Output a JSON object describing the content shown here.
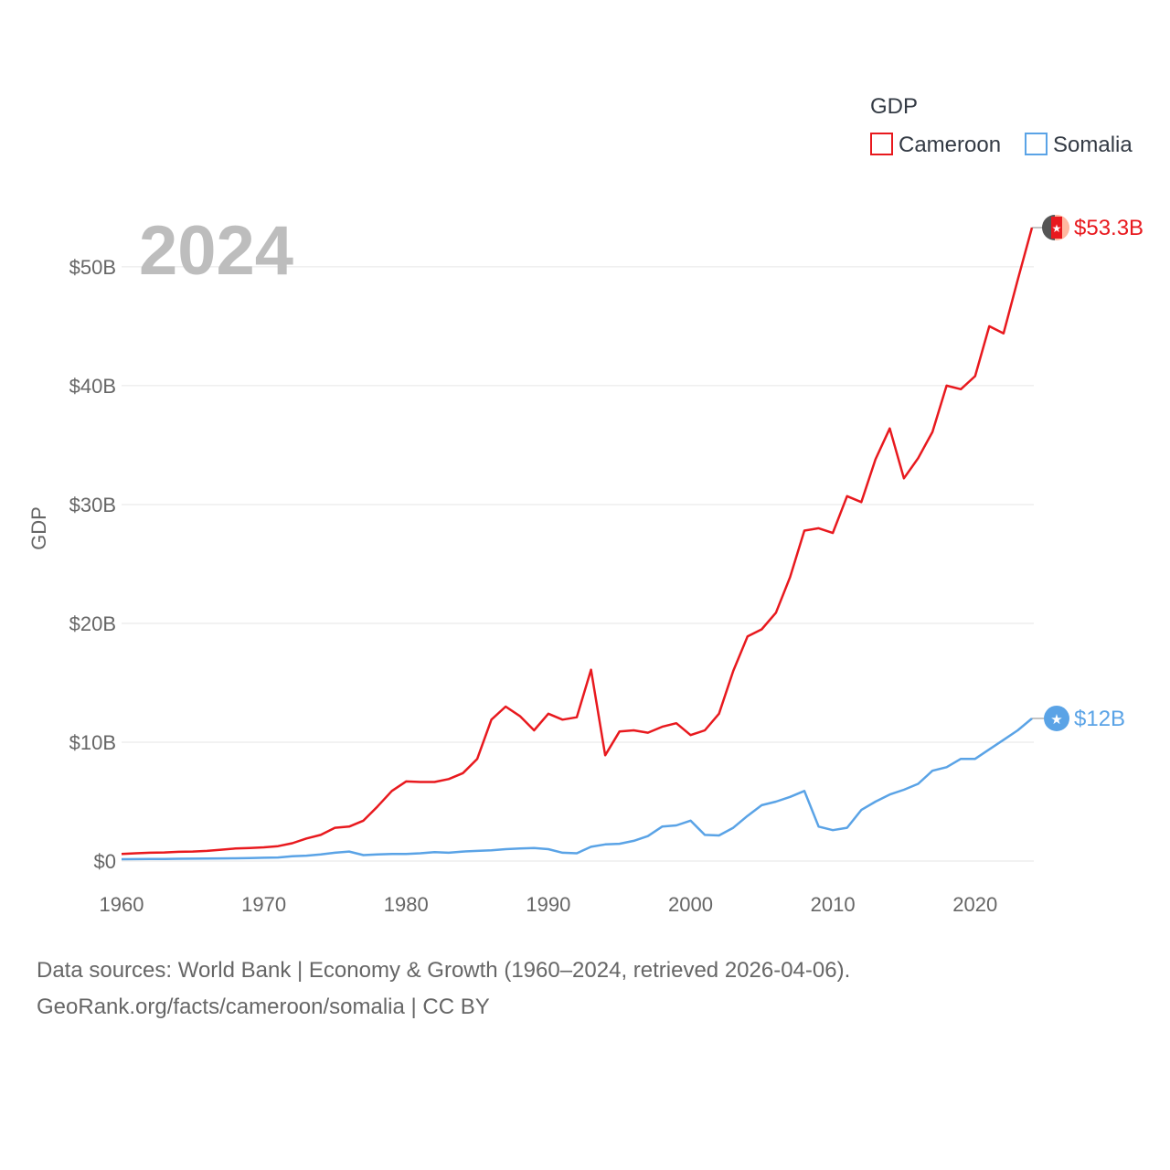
{
  "chart_data": {
    "type": "line",
    "year_label": "2024",
    "legend_title": "GDP",
    "ylabel": "GDP",
    "xlim": [
      1960,
      2024
    ],
    "ylim": [
      0,
      53.3
    ],
    "x_ticks": [
      1960,
      1970,
      1980,
      1990,
      2000,
      2010,
      2020
    ],
    "x_tick_labels": [
      "1960",
      "1970",
      "1980",
      "1990",
      "2000",
      "2010",
      "2020"
    ],
    "y_ticks": [
      0,
      10,
      20,
      30,
      40,
      50
    ],
    "y_tick_labels": [
      "$0",
      "$10B",
      "$20B",
      "$30B",
      "$40B",
      "$50B"
    ],
    "x": [
      1960,
      1961,
      1962,
      1963,
      1964,
      1965,
      1966,
      1967,
      1968,
      1969,
      1970,
      1971,
      1972,
      1973,
      1974,
      1975,
      1976,
      1977,
      1978,
      1979,
      1980,
      1981,
      1982,
      1983,
      1984,
      1985,
      1986,
      1987,
      1988,
      1989,
      1990,
      1991,
      1992,
      1993,
      1994,
      1995,
      1996,
      1997,
      1998,
      1999,
      2000,
      2001,
      2002,
      2003,
      2004,
      2005,
      2006,
      2007,
      2008,
      2009,
      2010,
      2011,
      2012,
      2013,
      2014,
      2015,
      2016,
      2017,
      2018,
      2019,
      2020,
      2021,
      2022,
      2023,
      2024
    ],
    "series": [
      {
        "name": "Cameroon",
        "color": "#e8191e",
        "end_label": "$53.3B",
        "values": [
          0.6,
          0.65,
          0.7,
          0.72,
          0.78,
          0.8,
          0.85,
          0.95,
          1.05,
          1.1,
          1.15,
          1.25,
          1.5,
          1.9,
          2.2,
          2.8,
          2.9,
          3.4,
          4.6,
          5.9,
          6.7,
          6.65,
          6.65,
          6.9,
          7.4,
          8.6,
          11.9,
          13.0,
          12.2,
          11.0,
          12.4,
          11.9,
          12.1,
          16.1,
          8.9,
          10.9,
          11.0,
          10.8,
          11.3,
          11.6,
          10.6,
          11.0,
          12.4,
          16.0,
          18.9,
          19.5,
          20.9,
          23.9,
          27.8,
          28.0,
          27.6,
          30.7,
          30.2,
          33.8,
          36.4,
          32.2,
          33.9,
          36.1,
          40.0,
          39.7,
          40.8,
          45.0,
          44.4,
          48.9,
          53.3
        ]
      },
      {
        "name": "Somalia",
        "color": "#5aa3e6",
        "end_label": "$12B",
        "values": [
          0.15,
          0.16,
          0.17,
          0.18,
          0.19,
          0.2,
          0.21,
          0.22,
          0.23,
          0.25,
          0.28,
          0.3,
          0.4,
          0.45,
          0.55,
          0.7,
          0.8,
          0.5,
          0.55,
          0.6,
          0.6,
          0.65,
          0.75,
          0.7,
          0.8,
          0.85,
          0.9,
          1.0,
          1.05,
          1.1,
          1.0,
          0.7,
          0.65,
          1.2,
          1.4,
          1.45,
          1.7,
          2.1,
          2.9,
          3.0,
          3.4,
          2.2,
          2.15,
          2.8,
          3.8,
          4.7,
          5.0,
          5.4,
          5.9,
          2.9,
          2.6,
          2.8,
          4.3,
          5.0,
          5.6,
          6.0,
          6.5,
          7.6,
          7.9,
          8.6,
          8.6,
          9.4,
          10.2,
          11.0,
          12.0
        ]
      }
    ]
  },
  "footer": {
    "line1": "Data sources: World Bank | Economy & Growth (1960–2024, retrieved 2026-04-06).",
    "line2": "GeoRank.org/facts/cameroon/somalia | CC BY"
  }
}
